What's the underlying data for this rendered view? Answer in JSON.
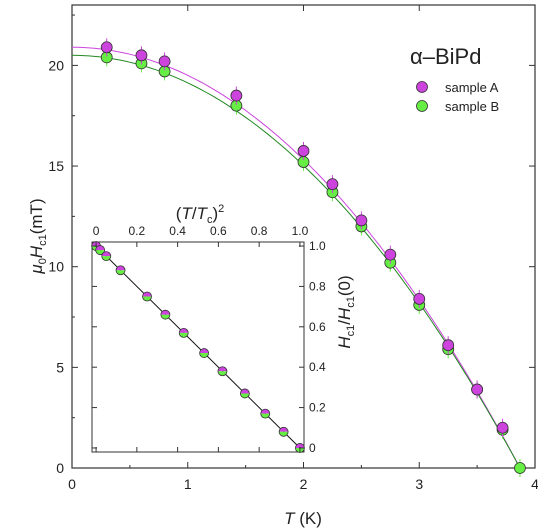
{
  "chart_data": [
    {
      "type": "scatter",
      "title": "α–BiPd",
      "xlabel": "T (K)",
      "ylabel": "μ0Hc1(mT)",
      "xlim": [
        0,
        4
      ],
      "ylim": [
        0,
        23
      ],
      "x_ticks": [
        "0",
        "1",
        "2",
        "3",
        "4"
      ],
      "y_ticks": [
        "0",
        "5",
        "10",
        "15",
        "20"
      ],
      "legend_position": "top-right",
      "series": [
        {
          "name": "sample A",
          "color": "#cc44dd",
          "x": [
            0.3,
            0.6,
            0.8,
            1.42,
            2.0,
            2.25,
            2.5,
            2.75,
            3.0,
            3.25,
            3.5,
            3.72
          ],
          "y": [
            20.9,
            20.5,
            20.2,
            18.5,
            15.75,
            14.1,
            12.3,
            10.6,
            8.4,
            6.1,
            3.9,
            2.0
          ]
        },
        {
          "name": "sample B",
          "color": "#66ee44",
          "x": [
            0.3,
            0.6,
            0.8,
            1.42,
            2.0,
            2.25,
            2.5,
            2.75,
            3.0,
            3.25,
            3.5,
            3.72,
            3.87
          ],
          "y": [
            20.4,
            20.1,
            19.7,
            18.0,
            15.2,
            13.7,
            12.0,
            10.2,
            8.1,
            5.9,
            3.9,
            1.9,
            0.0
          ]
        }
      ],
      "fits": [
        {
          "series": "sample A",
          "color": "#cc44dd",
          "H0": 20.9,
          "Tc": 3.87
        },
        {
          "series": "sample B",
          "color": "#228822",
          "H0": 20.5,
          "Tc": 3.87
        }
      ]
    },
    {
      "type": "scatter",
      "title": "",
      "xlabel": "(T/Tc)^2",
      "ylabel": "Hc1/Hc1(0)",
      "xlim": [
        -0.02,
        1.02
      ],
      "ylim": [
        -0.02,
        1.02
      ],
      "x_ticks": [
        "0",
        "0.2",
        "0.4",
        "0.6",
        "0.8",
        "1.0"
      ],
      "y_ticks": [
        "0",
        "0.2",
        "0.4",
        "0.6",
        "0.8",
        "1.0"
      ],
      "points": {
        "x": [
          0,
          0.02,
          0.05,
          0.12,
          0.25,
          0.34,
          0.43,
          0.53,
          0.62,
          0.73,
          0.83,
          0.92,
          1.0
        ],
        "y": [
          1.0,
          0.98,
          0.95,
          0.88,
          0.75,
          0.66,
          0.57,
          0.47,
          0.38,
          0.27,
          0.17,
          0.08,
          0.0
        ]
      },
      "fit": {
        "from": [
          0,
          1.0
        ],
        "to": [
          1.0,
          0.0
        ]
      }
    }
  ]
}
